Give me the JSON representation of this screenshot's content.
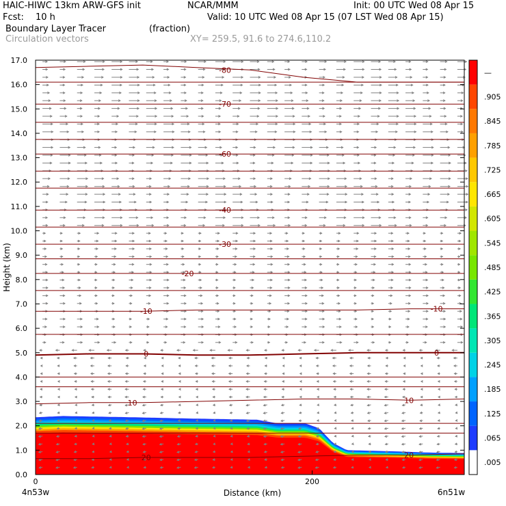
{
  "header": {
    "model_line": "HAIC-HIWC 13km ARW-GFS init",
    "org": "NCAR/MMM",
    "init": "Init: 00 UTC Wed 08 Apr 15",
    "fcst_label": "Fcst:",
    "fcst_value": "10 h",
    "valid": "Valid: 10 UTC Wed 08 Apr 15 (07 LST Wed 08 Apr 15)",
    "field1_name": "Boundary Layer Tracer",
    "field1_units": "(fraction)",
    "field2_name": "Circulation vectors",
    "xy_range": "XY= 259.5, 91.6 to 274.6,110.2"
  },
  "chart_data": {
    "type": "heatmap",
    "ylabel": "Height (km)",
    "xlabel": "Distance (km)",
    "x_range": [
      0,
      310
    ],
    "ylim": [
      0,
      17
    ],
    "y_ticks": [
      "0.0",
      "1.0",
      "2.0",
      "3.0",
      "4.0",
      "5.0",
      "6.0",
      "7.0",
      "8.0",
      "9.0",
      "10.0",
      "11.0",
      "12.0",
      "13.0",
      "14.0",
      "15.0",
      "16.0",
      "17.0"
    ],
    "x_ticks": [
      "0",
      "200"
    ],
    "x_left_label": "4n53w",
    "x_right_label": "6n51w",
    "colorbar_labels": [
      ".005",
      ".065",
      ".125",
      ".185",
      ".245",
      ".305",
      ".365",
      ".425",
      ".485",
      ".545",
      ".605",
      ".665",
      ".725",
      ".785",
      ".845",
      ".905",
      "—"
    ],
    "colorbar_colors": [
      "#ffffff",
      "#1e3cff",
      "#0064ff",
      "#00a0ff",
      "#00d2e6",
      "#00e6b4",
      "#00e678",
      "#32e632",
      "#78e600",
      "#a0e600",
      "#d2e600",
      "#ffe600",
      "#ffc800",
      "#ffa000",
      "#ff7800",
      "#ff4600",
      "#ff0000"
    ],
    "contour_color": "#800000",
    "vector_color": "#808080",
    "tracer_top_profile": [
      [
        0,
        2.35
      ],
      [
        20,
        2.4
      ],
      [
        70,
        2.35
      ],
      [
        110,
        2.3
      ],
      [
        160,
        2.25
      ],
      [
        175,
        2.1
      ],
      [
        195,
        2.1
      ],
      [
        205,
        1.9
      ],
      [
        215,
        1.3
      ],
      [
        225,
        1.0
      ],
      [
        260,
        0.95
      ],
      [
        285,
        0.9
      ],
      [
        310,
        0.88
      ]
    ],
    "contours": [
      {
        "label": "-80",
        "label_x": 137,
        "y": [
          16.7,
          16.75,
          16.8,
          16.7,
          16.6,
          16.3,
          16.1,
          16.1,
          16.1
        ]
      },
      {
        "label": "-70",
        "label_x": 137,
        "y": [
          15.2,
          15.2,
          15.2,
          15.2,
          15.2,
          15.2,
          15.2,
          15.2,
          15.2
        ]
      },
      {
        "label": "-60",
        "label_x": 137,
        "y": [
          13.15,
          13.15,
          13.15,
          13.15,
          13.15,
          13.15,
          13.15,
          13.15,
          13.15
        ]
      },
      {
        "label": "-40",
        "label_x": 137,
        "y": [
          10.85,
          10.85,
          10.85,
          10.85,
          10.85,
          10.85,
          10.85,
          10.85,
          10.85
        ]
      },
      {
        "label": "-30",
        "label_x": 137,
        "y": [
          9.45,
          9.45,
          9.45,
          9.45,
          9.45,
          9.45,
          9.45,
          9.45,
          9.45
        ]
      },
      {
        "label": "-20",
        "label_x": 110,
        "y": [
          8.25,
          8.25,
          8.25,
          8.25,
          8.25,
          8.25,
          8.25,
          8.25,
          8.25
        ]
      },
      {
        "label": "-10",
        "label_x": 80,
        "label2_x": 290,
        "y": [
          6.7,
          6.7,
          6.7,
          6.75,
          6.75,
          6.75,
          6.75,
          6.8,
          6.8
        ]
      },
      {
        "label": "0",
        "label_x": 80,
        "label2_x": 290,
        "y": [
          4.9,
          4.95,
          4.95,
          4.9,
          4.9,
          4.95,
          5.0,
          5.0,
          5.0
        ]
      },
      {
        "label": "10",
        "label_x": 70,
        "label2_x": 270,
        "y": [
          2.9,
          2.95,
          2.95,
          3.0,
          3.05,
          3.1,
          3.1,
          3.05,
          3.1
        ]
      },
      {
        "label": "20",
        "label_x": 80,
        "label2_x": 270,
        "y": [
          0.65,
          0.65,
          0.7,
          0.7,
          0.7,
          0.75,
          0.8,
          0.8,
          0.85
        ]
      }
    ]
  }
}
